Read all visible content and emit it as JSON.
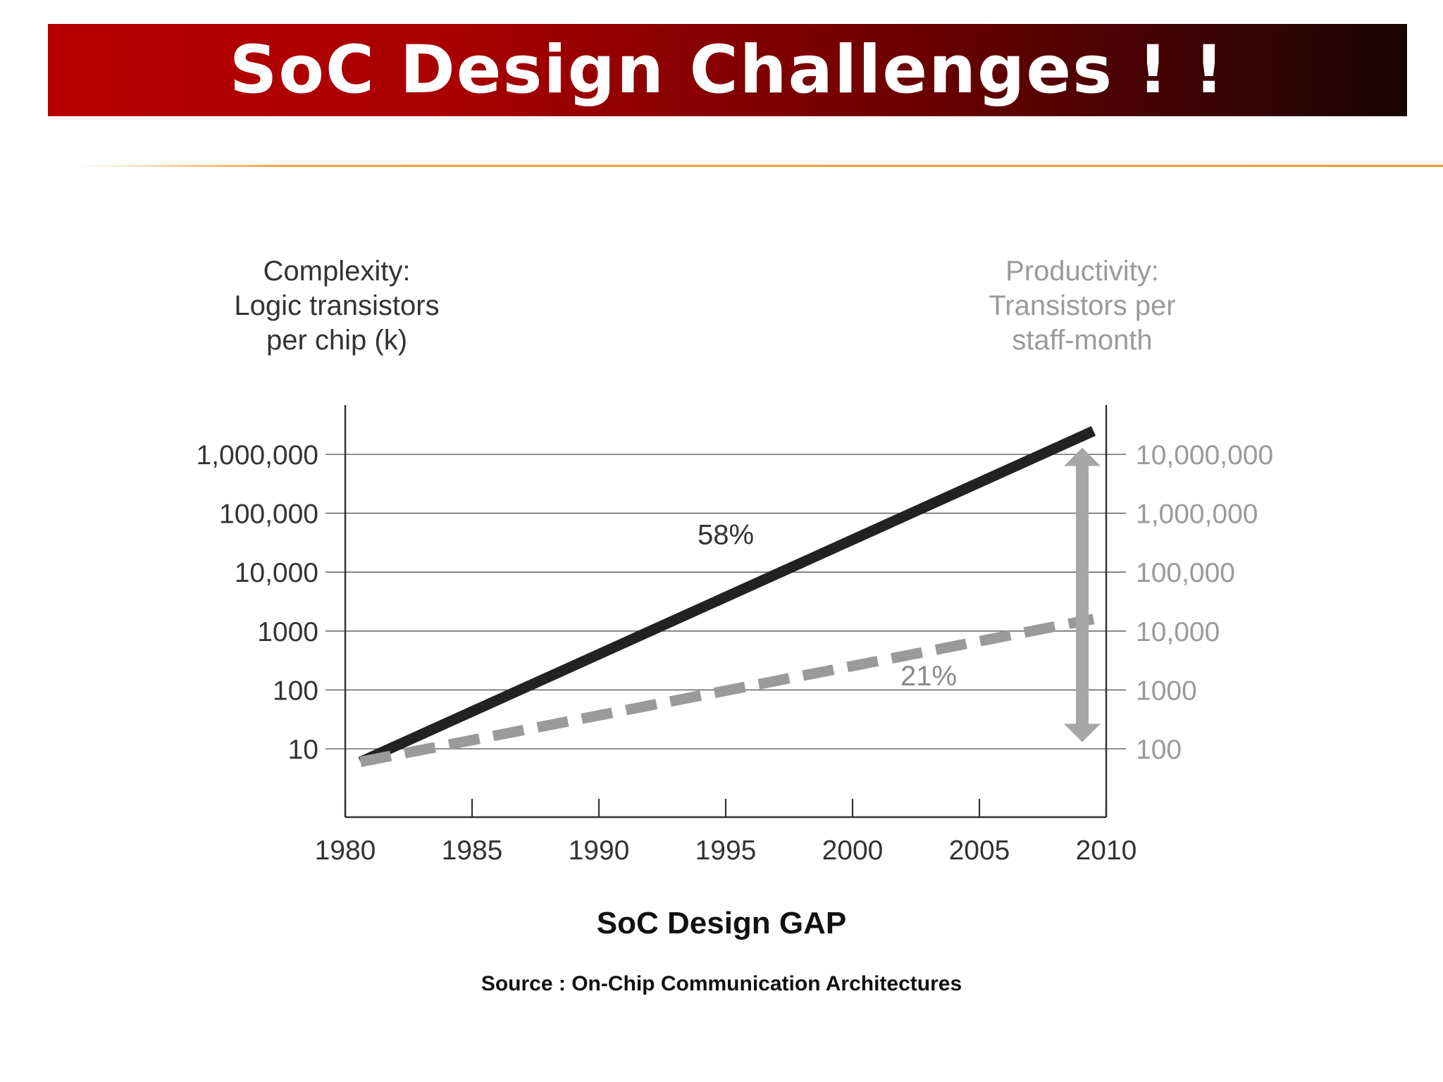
{
  "slide": {
    "title": "SoC Design Challenges ! !",
    "caption": "SoC Design GAP",
    "source": "Source : On-Chip Communication Architectures"
  },
  "colors": {
    "title_bar_start": "#b80000",
    "title_bar_end": "#1a0505",
    "divider": "#f0a040",
    "complexity_line": "#222222",
    "productivity_line": "#9a9a9a"
  },
  "chart_data": {
    "type": "line",
    "y_left_title": [
      "Complexity:",
      "Logic transistors",
      "per chip (k)"
    ],
    "y_right_title": [
      "Productivity:",
      "Transistors per",
      "staff-month"
    ],
    "x_ticks": [
      "1980",
      "1985",
      "1990",
      "1995",
      "2000",
      "2005",
      "2010"
    ],
    "xlim": [
      1980,
      2010
    ],
    "y_left_ticks": [
      {
        "label": "1,000,000",
        "value": 1000000
      },
      {
        "label": "100,000",
        "value": 100000
      },
      {
        "label": "10,000",
        "value": 10000
      },
      {
        "label": "1000",
        "value": 1000
      },
      {
        "label": "100",
        "value": 100
      },
      {
        "label": "10",
        "value": 10
      }
    ],
    "y_right_ticks": [
      {
        "label": "10,000,000",
        "value": 10000000
      },
      {
        "label": "1,000,000",
        "value": 1000000
      },
      {
        "label": "100,000",
        "value": 100000
      },
      {
        "label": "10,000",
        "value": 10000
      },
      {
        "label": "1000",
        "value": 1000
      },
      {
        "label": "100",
        "value": 100
      }
    ],
    "y_left_scale": "log",
    "y_right_scale": "log",
    "grid": true,
    "series": [
      {
        "axis": "left",
        "style": "solid",
        "label": "58%",
        "label_at": {
          "x": 1995,
          "y": 30000
        },
        "points": [
          {
            "x": 1980.6,
            "y": 6
          },
          {
            "x": 2009.5,
            "y": 2500000
          }
        ]
      },
      {
        "axis": "right",
        "style": "dashed",
        "label": "21%",
        "label_at": {
          "x": 2003,
          "y": 1200
        },
        "points": [
          {
            "x": 1980.6,
            "y": 60
          },
          {
            "x": 2009.5,
            "y": 16000
          }
        ]
      }
    ],
    "gap_arrow": {
      "x": 2009,
      "y_top": 1300000,
      "y_bottom": 13
    }
  }
}
